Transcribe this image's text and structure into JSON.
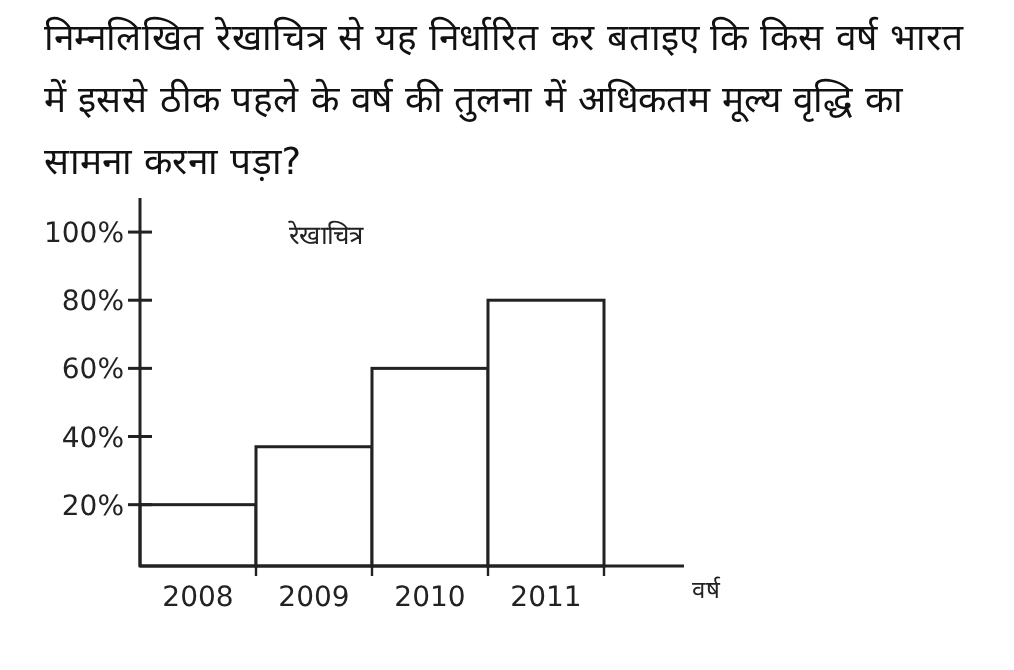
{
  "chart_data": {
    "type": "bar",
    "title": "निम्नलिखित रेखाचित्र से यह निर्धारित कर बताइए कि किस वर्ष भारत में इससे ठीक पहले के वर्ष की तुलना में अधिकतम मूल्य वृद्धि का सामना करना पड़ा?",
    "annotations": [
      "रेखाचित्र"
    ],
    "xlabel": "वर्ष",
    "categories": [
      "2008",
      "2009",
      "2010",
      "2011"
    ],
    "values": [
      20,
      37,
      60,
      80
    ],
    "color": "#ffffff",
    "ylim": [
      2,
      110
    ],
    "yticks": [
      {
        "value": 20,
        "label": "20%"
      },
      {
        "value": 40,
        "label": "40%"
      },
      {
        "value": 60,
        "label": "60%"
      },
      {
        "value": 80,
        "label": "80%"
      },
      {
        "value": 100,
        "label": "100%"
      }
    ]
  }
}
